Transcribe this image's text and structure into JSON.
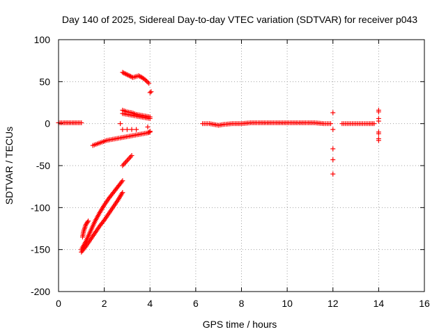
{
  "chart_data": {
    "type": "scatter",
    "title": "Day 140 of 2025, Sidereal Day-to-day VTEC variation (SDTVAR) for receiver p043",
    "xlabel": "GPS time / hours",
    "ylabel": "SDTVAR / TECUs",
    "xlim": [
      0,
      16
    ],
    "ylim": [
      -200,
      100
    ],
    "grid": true,
    "marker": "+",
    "point_color": "#ff0000",
    "x_ticks": [
      "0",
      "2",
      "4",
      "6",
      "8",
      "10",
      "12",
      "14",
      "16"
    ],
    "y_ticks": [
      "100",
      "50",
      "0",
      "-50",
      "-100",
      "-150",
      "-200"
    ],
    "segments": [
      {
        "name": "baseline-early",
        "points": [
          [
            0.0,
            1
          ],
          [
            0.2,
            1
          ],
          [
            0.4,
            1
          ],
          [
            0.6,
            1
          ],
          [
            0.8,
            1
          ],
          [
            1.0,
            1
          ]
        ]
      },
      {
        "name": "arc-upper-rise",
        "points": [
          [
            1.0,
            -150
          ],
          [
            1.2,
            -140
          ],
          [
            1.4,
            -128
          ],
          [
            1.6,
            -116
          ],
          [
            1.8,
            -106
          ],
          [
            2.0,
            -97
          ],
          [
            2.2,
            -89
          ],
          [
            2.4,
            -82
          ],
          [
            2.6,
            -75
          ],
          [
            2.8,
            -68
          ]
        ]
      },
      {
        "name": "arc-lower-rise",
        "points": [
          [
            1.0,
            -153
          ],
          [
            1.2,
            -146
          ],
          [
            1.4,
            -138
          ],
          [
            1.6,
            -130
          ],
          [
            1.8,
            -122
          ],
          [
            2.0,
            -115
          ],
          [
            2.2,
            -107
          ],
          [
            2.4,
            -99
          ],
          [
            2.6,
            -91
          ],
          [
            2.8,
            -82
          ]
        ]
      },
      {
        "name": "arc-short",
        "points": [
          [
            1.05,
            -135
          ],
          [
            1.1,
            -128
          ],
          [
            1.2,
            -120
          ],
          [
            1.3,
            -116
          ]
        ]
      },
      {
        "name": "arc-steep",
        "points": [
          [
            2.8,
            -50
          ],
          [
            2.9,
            -47
          ],
          [
            3.0,
            -44
          ],
          [
            3.1,
            -41
          ],
          [
            3.2,
            -38
          ]
        ]
      },
      {
        "name": "lower-band",
        "points": [
          [
            1.5,
            -26
          ],
          [
            1.7,
            -24
          ],
          [
            1.9,
            -22
          ],
          [
            2.1,
            -20
          ],
          [
            2.3,
            -19
          ],
          [
            2.5,
            -18
          ],
          [
            2.7,
            -17
          ],
          [
            2.9,
            -16
          ],
          [
            3.1,
            -15
          ],
          [
            3.3,
            -14
          ],
          [
            3.5,
            -13
          ],
          [
            3.7,
            -12
          ],
          [
            3.9,
            -11
          ],
          [
            4.0,
            -10
          ]
        ]
      },
      {
        "name": "high-band",
        "points": [
          [
            2.8,
            61
          ],
          [
            2.95,
            59
          ],
          [
            3.1,
            57
          ],
          [
            3.25,
            55
          ],
          [
            3.5,
            57
          ],
          [
            3.65,
            55
          ],
          [
            3.8,
            52
          ],
          [
            3.95,
            48
          ]
        ]
      },
      {
        "name": "mid-band",
        "points": [
          [
            2.8,
            16
          ],
          [
            3.0,
            14
          ],
          [
            3.2,
            13
          ],
          [
            3.4,
            11
          ],
          [
            3.6,
            10
          ],
          [
            3.8,
            9
          ],
          [
            4.0,
            8
          ]
        ]
      },
      {
        "name": "mid-band-2",
        "points": [
          [
            2.8,
            12
          ],
          [
            3.0,
            11
          ],
          [
            3.2,
            10
          ],
          [
            3.4,
            9
          ],
          [
            3.6,
            8
          ],
          [
            3.8,
            7
          ],
          [
            4.0,
            6
          ]
        ]
      },
      {
        "name": "scatter-mid",
        "points": [
          [
            2.7,
            0
          ],
          [
            2.8,
            -7
          ],
          [
            3.0,
            -7
          ],
          [
            3.2,
            -7
          ],
          [
            3.4,
            -7
          ],
          [
            3.9,
            -4
          ],
          [
            4.0,
            -9
          ],
          [
            4.0,
            37
          ],
          [
            4.05,
            38
          ]
        ]
      },
      {
        "name": "baseline-mid",
        "points": [
          [
            6.3,
            0
          ],
          [
            6.6,
            0
          ],
          [
            6.8,
            -1
          ],
          [
            7.0,
            -2
          ],
          [
            7.2,
            -1
          ],
          [
            7.6,
            0
          ],
          [
            8.0,
            0
          ],
          [
            8.4,
            1
          ],
          [
            8.8,
            1
          ],
          [
            9.2,
            1
          ],
          [
            9.6,
            1
          ],
          [
            10.0,
            1
          ],
          [
            10.4,
            1
          ],
          [
            10.8,
            1
          ],
          [
            11.2,
            1
          ],
          [
            11.6,
            0
          ],
          [
            11.9,
            0
          ]
        ]
      },
      {
        "name": "baseline-late",
        "points": [
          [
            12.4,
            0
          ],
          [
            12.7,
            0
          ],
          [
            13.0,
            0
          ],
          [
            13.3,
            0
          ],
          [
            13.6,
            0
          ],
          [
            13.8,
            0
          ]
        ]
      },
      {
        "name": "column-12",
        "points": [
          [
            12.0,
            13
          ],
          [
            12.0,
            -7
          ],
          [
            12.0,
            -30
          ],
          [
            12.0,
            -43
          ],
          [
            12.0,
            -60
          ]
        ]
      },
      {
        "name": "column-14",
        "points": [
          [
            14.0,
            16
          ],
          [
            14.0,
            14
          ],
          [
            14.0,
            6
          ],
          [
            14.0,
            3
          ],
          [
            14.0,
            -10
          ],
          [
            14.0,
            -12
          ],
          [
            14.0,
            -18
          ],
          [
            14.0,
            -20
          ]
        ]
      }
    ]
  }
}
